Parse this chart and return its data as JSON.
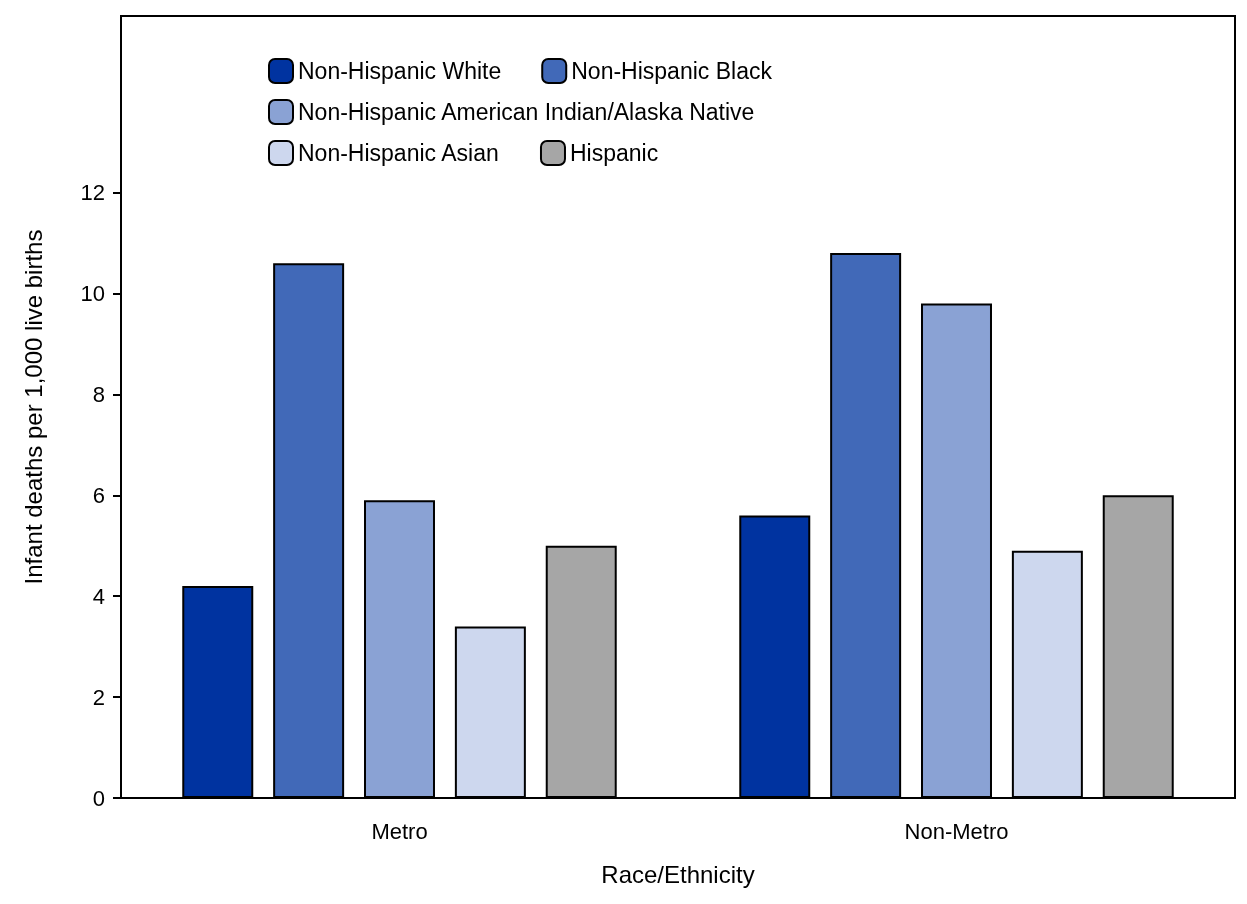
{
  "chart_data": {
    "type": "bar",
    "xlabel": "Race/Ethnicity",
    "ylabel": "Infant deaths per 1,000 live births",
    "categories": [
      "Metro",
      "Non-Metro"
    ],
    "series": [
      {
        "name": "Non-Hispanic White",
        "color": "#0033a0",
        "values": [
          4.2,
          5.6
        ]
      },
      {
        "name": "Non-Hispanic Black",
        "color": "#4169b8",
        "values": [
          10.6,
          10.8
        ]
      },
      {
        "name": "Non-Hispanic American Indian/Alaska Native",
        "color": "#8aa2d4",
        "values": [
          5.9,
          9.8
        ]
      },
      {
        "name": "Non-Hispanic Asian",
        "color": "#cdd7ee",
        "values": [
          3.4,
          4.9
        ]
      },
      {
        "name": "Hispanic",
        "color": "#a6a6a6",
        "values": [
          5.0,
          6.0
        ]
      }
    ],
    "ylim": [
      0,
      15.5
    ],
    "yticks": [
      0,
      2,
      4,
      6,
      8,
      10,
      12
    ],
    "grid": false,
    "legend": "top left"
  }
}
